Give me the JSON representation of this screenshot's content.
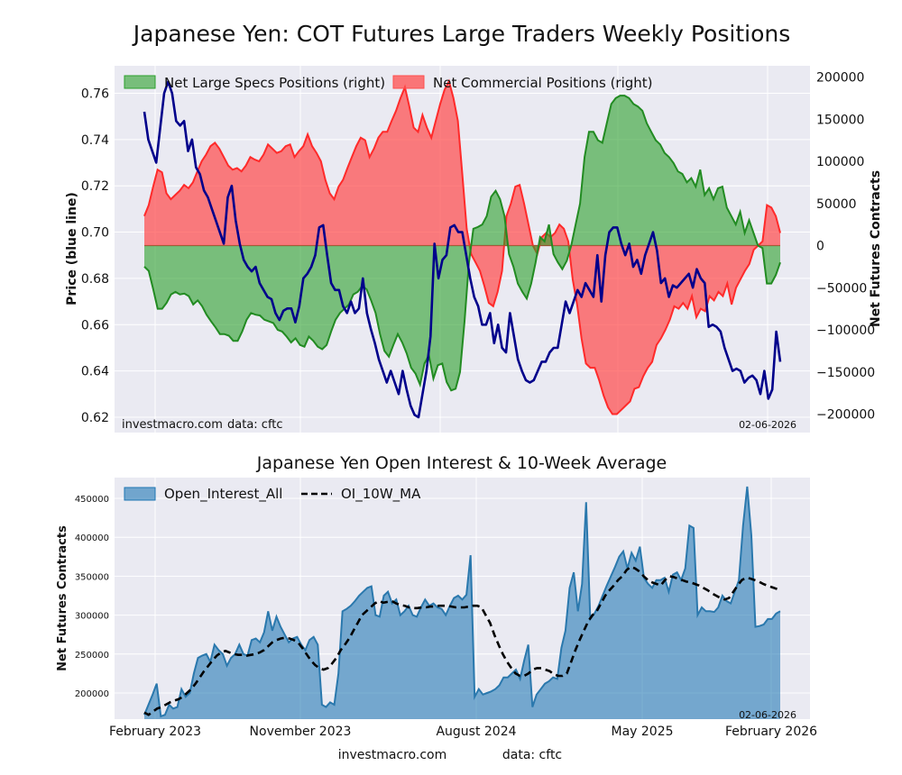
{
  "figure": {
    "title": "Japanese Yen: COT Futures Large Traders Weekly Positions",
    "footer_site": "investmacro.com",
    "footer_source": "data: cftc"
  },
  "chart_data": [
    {
      "type": "line",
      "title": "",
      "ylabel": "Price (blue line)",
      "ylim": [
        0.62,
        0.77
      ],
      "yticks": [
        "0.62",
        "0.64",
        "0.66",
        "0.68",
        "0.70",
        "0.72",
        "0.74",
        "0.76"
      ],
      "y2label": "Net Futures Contracts",
      "y2lim": [
        -200000,
        200000
      ],
      "y2ticks": [
        "−200000",
        "−150000",
        "−100000",
        "−50000",
        "0",
        "50000",
        "100000",
        "150000",
        "200000"
      ],
      "grid": true,
      "legend_position": "top",
      "date_stamp": "02-06-2026",
      "watermark_site": "investmacro.com",
      "watermark_source": "data: cftc",
      "series": [
        {
          "name": "Net Large Specs Positions (right)",
          "kind": "area",
          "axis": "right",
          "color": "#2ca02c",
          "values": [
            -25000,
            -30000,
            -52000,
            -75000,
            -75000,
            -68000,
            -58000,
            -55000,
            -58000,
            -57000,
            -60000,
            -70000,
            -65000,
            -72000,
            -82000,
            -90000,
            -97000,
            -105000,
            -105000,
            -107000,
            -113000,
            -113000,
            -102000,
            -88000,
            -80000,
            -82000,
            -83000,
            -88000,
            -90000,
            -92000,
            -100000,
            -102000,
            -108000,
            -115000,
            -110000,
            -118000,
            -120000,
            -108000,
            -113000,
            -120000,
            -123000,
            -118000,
            -102000,
            -88000,
            -80000,
            -75000,
            -70000,
            -58000,
            -55000,
            -48000,
            -52000,
            -65000,
            -80000,
            -105000,
            -125000,
            -132000,
            -118000,
            -105000,
            -115000,
            -128000,
            -145000,
            -152000,
            -165000,
            -140000,
            -130000,
            -158000,
            -142000,
            -140000,
            -162000,
            -172000,
            -170000,
            -150000,
            -90000,
            -20000,
            20000,
            22000,
            25000,
            35000,
            58000,
            65000,
            55000,
            35000,
            -10000,
            -25000,
            -45000,
            -55000,
            -63000,
            -45000,
            -20000,
            10000,
            5000,
            25000,
            -10000,
            -20000,
            -28000,
            -18000,
            0,
            25000,
            50000,
            105000,
            135000,
            135000,
            125000,
            122000,
            145000,
            168000,
            175000,
            178000,
            178000,
            175000,
            168000,
            165000,
            160000,
            145000,
            135000,
            125000,
            120000,
            110000,
            105000,
            98000,
            88000,
            85000,
            75000,
            80000,
            70000,
            90000,
            60000,
            68000,
            55000,
            68000,
            70000,
            45000,
            35000,
            25000,
            40000,
            15000,
            30000,
            15000,
            0,
            -3000,
            -45000,
            -45000,
            -35000,
            -20000
          ]
        },
        {
          "name": "Net Commercial Positions (right)",
          "kind": "area",
          "axis": "right",
          "color": "#ff4d4d",
          "values": [
            35000,
            48000,
            70000,
            90000,
            87000,
            62000,
            55000,
            60000,
            65000,
            72000,
            68000,
            75000,
            88000,
            100000,
            108000,
            118000,
            122000,
            115000,
            105000,
            95000,
            90000,
            92000,
            88000,
            95000,
            105000,
            102000,
            100000,
            108000,
            120000,
            115000,
            110000,
            112000,
            118000,
            120000,
            105000,
            112000,
            118000,
            132000,
            118000,
            110000,
            100000,
            78000,
            62000,
            55000,
            70000,
            78000,
            92000,
            105000,
            118000,
            128000,
            125000,
            105000,
            115000,
            128000,
            135000,
            135000,
            148000,
            160000,
            175000,
            188000,
            165000,
            140000,
            135000,
            155000,
            140000,
            128000,
            148000,
            168000,
            185000,
            195000,
            175000,
            148000,
            85000,
            20000,
            -10000,
            -20000,
            -30000,
            -48000,
            -68000,
            -72000,
            -55000,
            -30000,
            35000,
            50000,
            70000,
            72000,
            50000,
            25000,
            0,
            -10000,
            10000,
            15000,
            10000,
            15000,
            25000,
            20000,
            5000,
            -40000,
            -70000,
            -110000,
            -140000,
            -145000,
            -145000,
            -160000,
            -178000,
            -192000,
            -200000,
            -200000,
            -195000,
            -190000,
            -185000,
            -170000,
            -168000,
            -155000,
            -145000,
            -138000,
            -118000,
            -110000,
            -100000,
            -88000,
            -72000,
            -75000,
            -68000,
            -75000,
            -60000,
            -85000,
            -75000,
            -78000,
            -60000,
            -65000,
            -55000,
            -60000,
            -45000,
            -70000,
            -50000,
            -40000,
            -30000,
            -22000,
            -5000,
            0,
            5000,
            48000,
            45000,
            35000,
            15000
          ]
        },
        {
          "name": "Price",
          "kind": "line",
          "axis": "left",
          "color": "#00008b",
          "values": [
            0.752,
            0.74,
            0.735,
            0.73,
            0.745,
            0.76,
            0.765,
            0.76,
            0.748,
            0.746,
            0.748,
            0.735,
            0.74,
            0.728,
            0.725,
            0.718,
            0.715,
            0.71,
            0.705,
            0.7,
            0.695,
            0.715,
            0.72,
            0.705,
            0.695,
            0.688,
            0.685,
            0.683,
            0.685,
            0.678,
            0.675,
            0.672,
            0.671,
            0.665,
            0.662,
            0.666,
            0.667,
            0.667,
            0.661,
            0.668,
            0.68,
            0.682,
            0.685,
            0.69,
            0.702,
            0.703,
            0.69,
            0.678,
            0.675,
            0.675,
            0.668,
            0.665,
            0.67,
            0.665,
            0.667,
            0.68,
            0.665,
            0.658,
            0.652,
            0.645,
            0.64,
            0.635,
            0.64,
            0.635,
            0.63,
            0.64,
            0.632,
            0.625,
            0.621,
            0.62,
            0.63,
            0.64,
            0.655,
            0.695,
            0.68,
            0.688,
            0.69,
            0.702,
            0.703,
            0.7,
            0.7,
            0.69,
            0.68,
            0.672,
            0.668,
            0.66,
            0.66,
            0.665,
            0.652,
            0.66,
            0.65,
            0.648,
            0.665,
            0.655,
            0.645,
            0.64,
            0.636,
            0.635,
            0.636,
            0.64,
            0.644,
            0.644,
            0.648,
            0.65,
            0.65,
            0.66,
            0.67,
            0.665,
            0.67,
            0.675,
            0.672,
            0.678,
            0.675,
            0.672,
            0.69,
            0.67,
            0.69,
            0.7,
            0.702,
            0.702,
            0.695,
            0.69,
            0.695,
            0.685,
            0.688,
            0.682,
            0.69,
            0.695,
            0.7,
            0.692,
            0.678,
            0.68,
            0.672,
            0.677,
            0.676,
            0.678,
            0.68,
            0.682,
            0.676,
            0.684,
            0.68,
            0.678,
            0.659,
            0.66,
            0.659,
            0.657,
            0.65,
            0.645,
            0.64,
            0.641,
            0.64,
            0.635,
            0.637,
            0.638,
            0.636,
            0.63,
            0.64,
            0.628,
            0.632,
            0.657,
            0.644
          ]
        }
      ]
    },
    {
      "type": "area",
      "title": "Japanese Yen Open Interest & 10-Week Average",
      "ylabel": "Net Futures Contracts",
      "ylim": [
        165000,
        480000
      ],
      "yticks": [
        "200000",
        "250000",
        "300000",
        "350000",
        "400000",
        "450000"
      ],
      "xticks": [
        "February 2023",
        "November 2023",
        "August 2024",
        "May 2025",
        "February 2026"
      ],
      "grid": true,
      "legend_position": "top-left",
      "date_stamp": "02-06-2026",
      "series": [
        {
          "name": "Open_Interest_All",
          "kind": "area",
          "color": "#1f77b4",
          "values": [
            172000,
            185000,
            198000,
            212000,
            170000,
            172000,
            185000,
            180000,
            182000,
            205000,
            195000,
            200000,
            225000,
            245000,
            248000,
            250000,
            240000,
            262000,
            255000,
            250000,
            235000,
            245000,
            250000,
            262000,
            250000,
            248000,
            268000,
            270000,
            265000,
            278000,
            305000,
            280000,
            298000,
            285000,
            275000,
            265000,
            270000,
            272000,
            262000,
            255000,
            268000,
            272000,
            262000,
            185000,
            182000,
            188000,
            185000,
            225000,
            305000,
            308000,
            312000,
            318000,
            325000,
            330000,
            335000,
            337000,
            300000,
            298000,
            325000,
            330000,
            315000,
            320000,
            300000,
            305000,
            312000,
            300000,
            298000,
            310000,
            320000,
            312000,
            315000,
            310000,
            308000,
            300000,
            312000,
            322000,
            325000,
            320000,
            326000,
            377000,
            195000,
            205000,
            198000,
            200000,
            202000,
            205000,
            210000,
            220000,
            220000,
            225000,
            230000,
            218000,
            242000,
            262000,
            182000,
            198000,
            205000,
            212000,
            215000,
            220000,
            218000,
            258000,
            280000,
            335000,
            355000,
            305000,
            340000,
            445000,
            295000,
            302000,
            312000,
            325000,
            338000,
            350000,
            362000,
            375000,
            382000,
            360000,
            380000,
            370000,
            388000,
            348000,
            340000,
            335000,
            345000,
            345000,
            348000,
            330000,
            352000,
            355000,
            345000,
            360000,
            415000,
            412000,
            300000,
            310000,
            305000,
            305000,
            304000,
            310000,
            325000,
            318000,
            315000,
            330000,
            345000,
            415000,
            465000,
            402000,
            285000,
            286000,
            288000,
            295000,
            295000,
            302000,
            305000
          ]
        },
        {
          "name": "OI_10W_MA",
          "kind": "line",
          "color": "#000000",
          "values": [
            175000,
            172000,
            176000,
            180000,
            182000,
            185000,
            188000,
            190000,
            192000,
            195000,
            200000,
            205000,
            212000,
            220000,
            228000,
            235000,
            242000,
            248000,
            252000,
            254000,
            252000,
            250000,
            249000,
            249000,
            248000,
            249000,
            250000,
            252000,
            255000,
            260000,
            265000,
            268000,
            270000,
            271000,
            270000,
            268000,
            265000,
            258000,
            250000,
            242000,
            236000,
            232000,
            230000,
            232000,
            238000,
            245000,
            255000,
            262000,
            270000,
            280000,
            290000,
            300000,
            305000,
            310000,
            315000,
            318000,
            316000,
            317000,
            318000,
            315000,
            313000,
            312000,
            310000,
            309000,
            309000,
            310000,
            310000,
            311000,
            311000,
            312000,
            312000,
            312000,
            311000,
            310000,
            310000,
            310000,
            311000,
            312000,
            312000,
            310000,
            300000,
            290000,
            275000,
            262000,
            250000,
            240000,
            232000,
            225000,
            222000,
            222000,
            225000,
            230000,
            232000,
            232000,
            230000,
            228000,
            224000,
            222000,
            222000,
            225000,
            240000,
            255000,
            268000,
            280000,
            292000,
            300000,
            305000,
            315000,
            325000,
            332000,
            338000,
            345000,
            350000,
            358000,
            362000,
            360000,
            356000,
            350000,
            345000,
            342000,
            340000,
            338000,
            345000,
            350000,
            349000,
            347000,
            345000,
            343000,
            342000,
            340000,
            338000,
            335000,
            332000,
            328000,
            325000,
            322000,
            320000,
            322000,
            330000,
            338000,
            345000,
            348000,
            347000,
            345000,
            343000,
            340000,
            338000,
            336000,
            334000,
            332000
          ]
        }
      ]
    }
  ]
}
